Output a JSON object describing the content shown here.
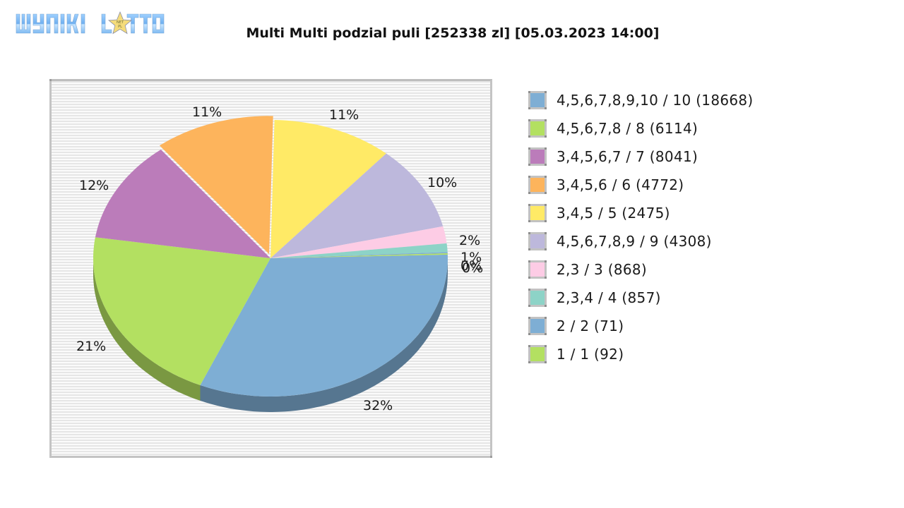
{
  "logo": {
    "text": "WYNIKI LOTTO",
    "icon": "star-icon"
  },
  "title": "Multi Multi podzial puli [252338 zl] [05.03.2023 14:00]",
  "chart_data": {
    "type": "pie",
    "style": "3d-pie",
    "title": "Multi Multi podzial puli [252338 zl] [05.03.2023 14:00]",
    "legend_position": "right",
    "categories": [
      "4,5,6,7,8,9,10 / 10 (18668)",
      "4,5,6,7,8 / 8 (6114)",
      "3,4,5,6,7 / 7 (8041)",
      "3,4,5,6 / 6 (4772)",
      "3,4,5 / 5 (2475)",
      "4,5,6,7,8,9 / 9 (4308)",
      "2,3 / 3 (868)",
      "2,3,4 / 4 (857)",
      "2 / 2 (71)",
      "1 / 1 (92)"
    ],
    "legend_values": [
      18668,
      6114,
      8041,
      4772,
      2475,
      4308,
      868,
      857,
      71,
      92
    ],
    "values": [
      32,
      21,
      12,
      11,
      11,
      10,
      2,
      1,
      0,
      0
    ],
    "value_labels": [
      "32%",
      "21%",
      "12%",
      "11%",
      "11%",
      "10%",
      "2%",
      "1%",
      "0%",
      "0%"
    ],
    "colors": [
      "#7eaed4",
      "#b3e061",
      "#bb7cba",
      "#fdb45c",
      "#ffea66",
      "#bdb8dc",
      "#fdcce5",
      "#8dd3c7",
      "#7eaed4",
      "#b3e061"
    ]
  },
  "legend": [
    {
      "label": "4,5,6,7,8,9,10 / 10 (18668)",
      "color": "#7eaed4"
    },
    {
      "label": "4,5,6,7,8 / 8 (6114)",
      "color": "#b3e061"
    },
    {
      "label": "3,4,5,6,7 / 7 (8041)",
      "color": "#bb7cba"
    },
    {
      "label": "3,4,5,6 / 6 (4772)",
      "color": "#fdb45c"
    },
    {
      "label": "3,4,5 / 5 (2475)",
      "color": "#ffea66"
    },
    {
      "label": "4,5,6,7,8,9 / 9 (4308)",
      "color": "#bdb8dc"
    },
    {
      "label": "2,3 / 3 (868)",
      "color": "#fdcce5"
    },
    {
      "label": "2,3,4 / 4 (857)",
      "color": "#8dd3c7"
    },
    {
      "label": "2 / 2 (71)",
      "color": "#7eaed4"
    },
    {
      "label": "1 / 1 (92)",
      "color": "#b3e061"
    }
  ],
  "labels": {
    "blue": "32%",
    "green": "21%",
    "purple": "12%",
    "orange": "11%",
    "yellow": "11%",
    "lavender": "10%",
    "pink": "2%",
    "teal": "1%",
    "zero_a": "0%",
    "zero_b": "0%"
  }
}
